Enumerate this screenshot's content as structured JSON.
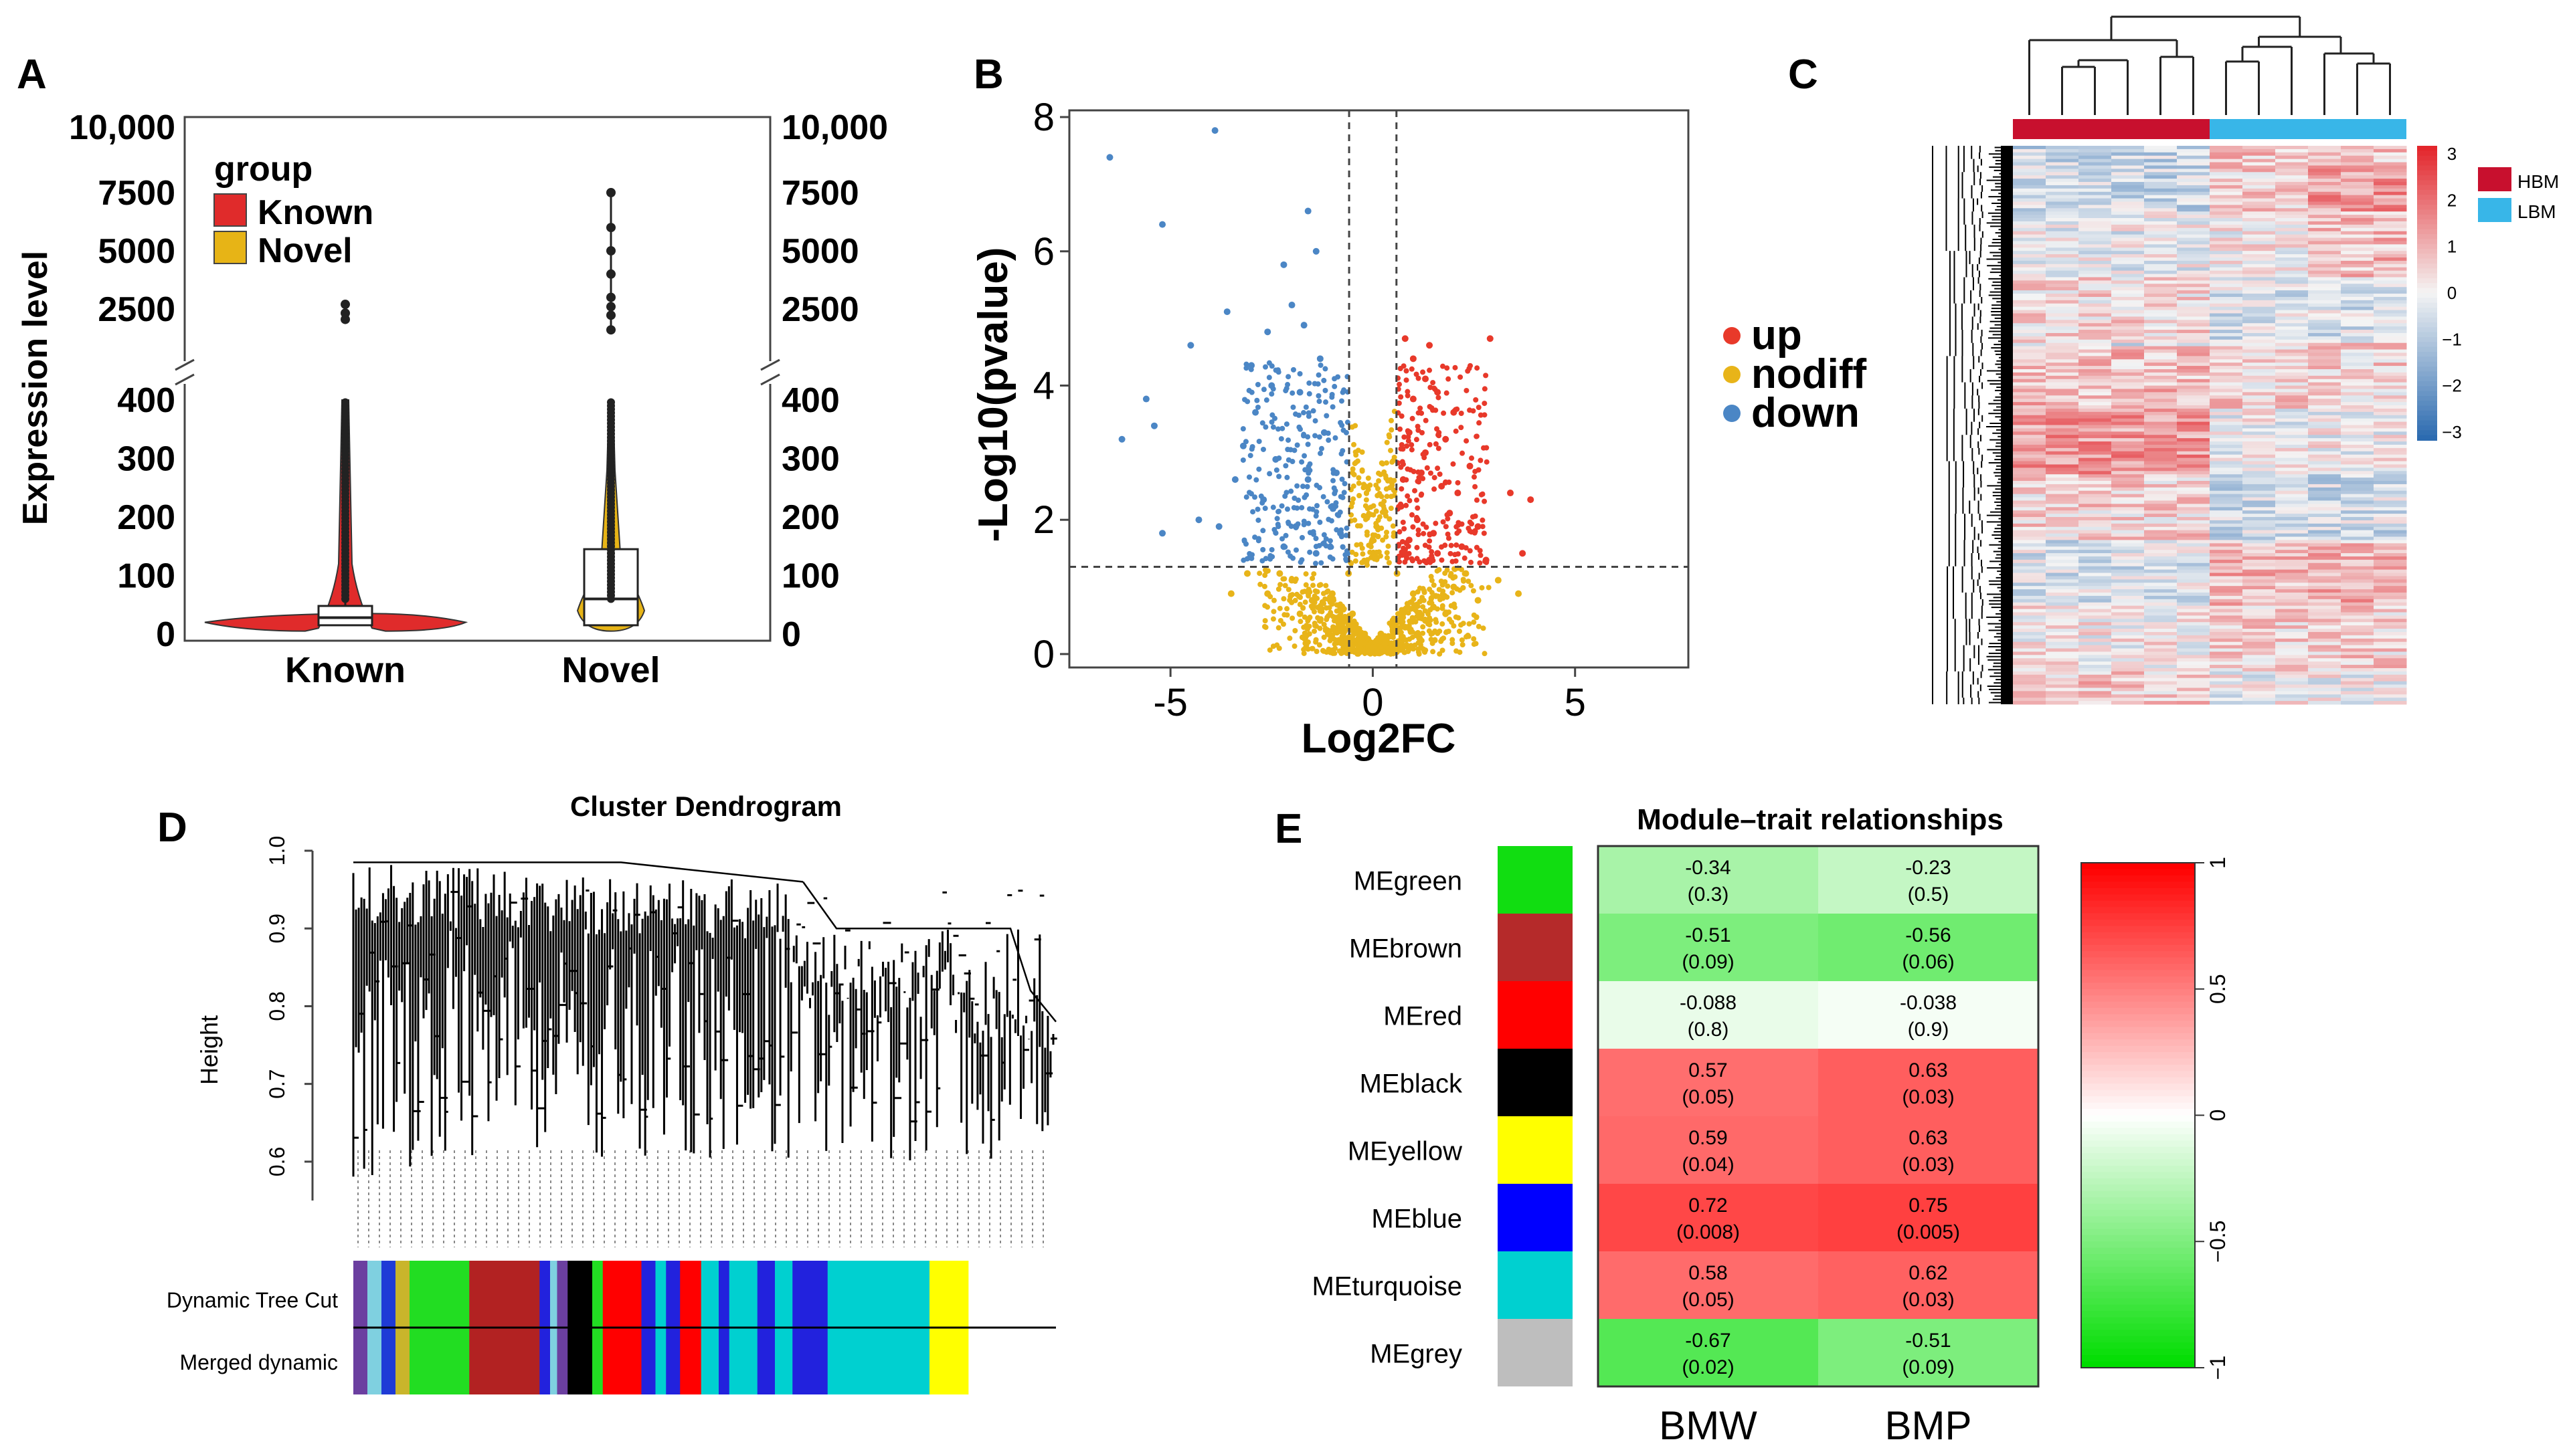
{
  "panels": {
    "A": {
      "letter": "A"
    },
    "B": {
      "letter": "B"
    },
    "C": {
      "letter": "C"
    },
    "D": {
      "letter": "D"
    },
    "E": {
      "letter": "E"
    }
  },
  "chart_data": [
    {
      "panel": "A",
      "type": "violin",
      "ylabel": "Expression level",
      "categories": [
        "Known",
        "Novel"
      ],
      "colors": {
        "Known": "#e02b2b",
        "Novel": "#e7b416"
      },
      "legend": {
        "title": "group",
        "items": [
          "Known",
          "Novel"
        ],
        "placement": "top-left"
      },
      "y_ticks_lower": [
        "0",
        "100",
        "200",
        "300",
        "400"
      ],
      "y_ticks_upper": [
        "2500",
        "5000",
        "7500",
        "10,000"
      ],
      "axis_break": true,
      "boxes": [
        {
          "name": "Known",
          "q1": 15,
          "median": 28,
          "q3": 48,
          "whisker_high": 400,
          "outliers_upper": [
            2000,
            2300,
            2700
          ]
        },
        {
          "name": "Novel",
          "q1": 15,
          "median": 60,
          "q3": 145,
          "whisker_high": 400,
          "outliers_upper": [
            1500,
            2200,
            2600,
            3000,
            4000,
            5000,
            6000,
            7500
          ]
        }
      ]
    },
    {
      "panel": "B",
      "type": "scatter",
      "title": "",
      "xlabel": "Log2FC",
      "ylabel": "-Log10(pvalue)",
      "xlim": [
        -7.5,
        7.8
      ],
      "ylim": [
        -0.2,
        8.1
      ],
      "x_ticks": [
        "-5",
        "0",
        "5"
      ],
      "y_ticks": [
        "0",
        "2",
        "4",
        "6",
        "8"
      ],
      "thresholds": {
        "log2fc": [
          -0.585,
          0.585
        ],
        "neg_log10_p": 1.3
      },
      "legend": {
        "items": [
          "up",
          "nodiff",
          "down"
        ],
        "placement": "right"
      },
      "colors": {
        "up": "#e8392a",
        "nodiff": "#e8b419",
        "down": "#4b86c5"
      },
      "series": [
        {
          "name": "up",
          "points": [
            [
              0.8,
              4.7
            ],
            [
              1.0,
              4.4
            ],
            [
              1.4,
              4.6
            ],
            [
              2.9,
              4.7
            ],
            [
              1.6,
              3.9
            ],
            [
              2.0,
              3.6
            ],
            [
              0.9,
              3.3
            ],
            [
              1.3,
              3.0
            ],
            [
              2.4,
              2.8
            ],
            [
              1.7,
              2.5
            ],
            [
              0.7,
              2.2
            ],
            [
              1.1,
              2.0
            ],
            [
              3.4,
              2.4
            ],
            [
              3.9,
              2.3
            ],
            [
              1.5,
              1.8
            ],
            [
              2.2,
              1.6
            ],
            [
              0.8,
              1.5
            ],
            [
              3.7,
              1.5
            ],
            [
              1.2,
              2.7
            ],
            [
              1.9,
              2.1
            ],
            [
              0.9,
              1.7
            ],
            [
              2.6,
              1.9
            ],
            [
              1.4,
              1.4
            ],
            [
              1.0,
              3.8
            ],
            [
              1.8,
              3.2
            ],
            [
              2.1,
              2.4
            ],
            [
              0.75,
              2.6
            ],
            [
              1.6,
              1.5
            ],
            [
              2.8,
              1.4
            ],
            [
              1.3,
              4.1
            ]
          ]
        },
        {
          "name": "down",
          "points": [
            [
              -6.5,
              7.4
            ],
            [
              -3.9,
              7.8
            ],
            [
              -5.2,
              6.4
            ],
            [
              -1.6,
              6.6
            ],
            [
              -2.2,
              5.8
            ],
            [
              -1.4,
              6.0
            ],
            [
              -3.6,
              5.1
            ],
            [
              -2.6,
              4.8
            ],
            [
              -2.0,
              5.2
            ],
            [
              -4.5,
              4.6
            ],
            [
              -1.3,
              4.4
            ],
            [
              -5.6,
              3.8
            ],
            [
              -6.2,
              3.2
            ],
            [
              -5.4,
              3.4
            ],
            [
              -2.9,
              3.6
            ],
            [
              -1.8,
              3.9
            ],
            [
              -3.2,
              3.1
            ],
            [
              -2.4,
              2.9
            ],
            [
              -1.2,
              3.3
            ],
            [
              -1.6,
              2.6
            ],
            [
              -5.2,
              1.8
            ],
            [
              -4.3,
              2.0
            ],
            [
              -3.8,
              1.9
            ],
            [
              -2.7,
              2.3
            ],
            [
              -1.9,
              1.9
            ],
            [
              -1.0,
              2.2
            ],
            [
              -2.2,
              1.6
            ],
            [
              -1.4,
              1.5
            ],
            [
              -3.4,
              2.6
            ],
            [
              -0.8,
              1.8
            ],
            [
              -2.5,
              4.0
            ],
            [
              -1.7,
              4.9
            ],
            [
              -3.0,
              4.3
            ],
            [
              -0.9,
              2.7
            ]
          ]
        },
        {
          "name": "nodiff",
          "points": [
            [
              -2.0,
              1.1
            ],
            [
              -1.5,
              0.8
            ],
            [
              -1.0,
              0.9
            ],
            [
              -0.5,
              0.6
            ],
            [
              -0.2,
              0.3
            ],
            [
              0.0,
              0.1
            ],
            [
              0.2,
              0.3
            ],
            [
              0.5,
              0.5
            ],
            [
              1.0,
              0.9
            ],
            [
              1.5,
              0.7
            ],
            [
              2.0,
              1.0
            ],
            [
              2.6,
              0.8
            ],
            [
              -2.6,
              0.9
            ],
            [
              -3.1,
              1.2
            ],
            [
              3.1,
              1.1
            ],
            [
              -0.8,
              0.4
            ],
            [
              0.8,
              0.4
            ],
            [
              -1.3,
              0.5
            ],
            [
              1.3,
              0.5
            ],
            [
              -0.3,
              0.15
            ],
            [
              0.3,
              0.15
            ],
            [
              -1.8,
              0.6
            ],
            [
              1.8,
              0.6
            ],
            [
              2.3,
              1.2
            ],
            [
              -2.3,
              1.2
            ],
            [
              3.6,
              0.9
            ],
            [
              -3.5,
              0.9
            ],
            [
              0.6,
              1.2
            ],
            [
              -0.6,
              1.2
            ],
            [
              1.1,
              0.3
            ],
            [
              -1.1,
              0.3
            ]
          ]
        }
      ]
    },
    {
      "panel": "C",
      "type": "heatmap",
      "groups": [
        "HBM",
        "LBM"
      ],
      "group_colors": {
        "HBM": "#c8102e",
        "LBM": "#38b6e8"
      },
      "samples_per_group": 6,
      "color_scale": {
        "min": -3,
        "max": 3,
        "low": "#2c6bb0",
        "mid": "#f4f4f4",
        "high": "#e3262c"
      },
      "scale_ticks": [
        "3",
        "2",
        "1",
        "0",
        "−1",
        "−2",
        "−3"
      ]
    },
    {
      "panel": "D",
      "type": "dendrogram",
      "title": "Cluster Dendrogram",
      "ylabel": "Height",
      "ylim": [
        0.5,
        1.0
      ],
      "y_ticks": [
        "0.6",
        "0.7",
        "0.8",
        "0.9",
        "1.0"
      ],
      "row_labels": [
        "Dynamic Tree Cut",
        "Merged dynamic"
      ],
      "color_bands": [
        {
          "color": "#6b3fa0",
          "width": 0.02
        },
        {
          "color": "#7fd0e0",
          "width": 0.02
        },
        {
          "color": "#1f3bd6",
          "width": 0.02
        },
        {
          "color": "#c9b52b",
          "width": 0.02
        },
        {
          "color": "#22dd22",
          "width": 0.085
        },
        {
          "color": "#b22222",
          "width": 0.1
        },
        {
          "color": "#2222dd",
          "width": 0.015
        },
        {
          "color": "#7fd0e0",
          "width": 0.01
        },
        {
          "color": "#6b3fa0",
          "width": 0.015
        },
        {
          "color": "#000000",
          "width": 0.035
        },
        {
          "color": "#22dd22",
          "width": 0.015
        },
        {
          "color": "#ff0000",
          "width": 0.055
        },
        {
          "color": "#2222dd",
          "width": 0.02
        },
        {
          "color": "#00d0d0",
          "width": 0.015
        },
        {
          "color": "#2222dd",
          "width": 0.02
        },
        {
          "color": "#ff0000",
          "width": 0.03
        },
        {
          "color": "#00d0d0",
          "width": 0.025
        },
        {
          "color": "#2222dd",
          "width": 0.015
        },
        {
          "color": "#00d0d0",
          "width": 0.04
        },
        {
          "color": "#2222dd",
          "width": 0.025
        },
        {
          "color": "#00d0d0",
          "width": 0.025
        },
        {
          "color": "#2222dd",
          "width": 0.05
        },
        {
          "color": "#00d0d0",
          "width": 0.145
        },
        {
          "color": "#ffff00",
          "width": 0.055
        }
      ]
    },
    {
      "panel": "E",
      "type": "heatmap",
      "title": "Module–trait relationships",
      "columns": [
        "BMW",
        "BMP"
      ],
      "rows": [
        "MEgreen",
        "MEbrown",
        "MEred",
        "MEblack",
        "MEyellow",
        "MEblue",
        "MEturquoise",
        "MEgrey"
      ],
      "row_colors": [
        "#11dd11",
        "#b52a2a",
        "#ff0000",
        "#000000",
        "#ffff00",
        "#0000ff",
        "#00d0d0",
        "#bebebe"
      ],
      "values": [
        [
          -0.34,
          -0.23
        ],
        [
          -0.51,
          -0.56
        ],
        [
          -0.088,
          -0.038
        ],
        [
          0.57,
          0.63
        ],
        [
          0.59,
          0.63
        ],
        [
          0.72,
          0.75
        ],
        [
          0.58,
          0.62
        ],
        [
          -0.67,
          -0.51
        ]
      ],
      "value_labels": [
        [
          "-0.34",
          "-0.23"
        ],
        [
          "-0.51",
          "-0.56"
        ],
        [
          "-0.088",
          "-0.038"
        ],
        [
          "0.57",
          "0.63"
        ],
        [
          "0.59",
          "0.63"
        ],
        [
          "0.72",
          "0.75"
        ],
        [
          "0.58",
          "0.62"
        ],
        [
          "-0.67",
          "-0.51"
        ]
      ],
      "pvalue_labels": [
        [
          "(0.3)",
          "(0.5)"
        ],
        [
          "(0.09)",
          "(0.06)"
        ],
        [
          "(0.8)",
          "(0.9)"
        ],
        [
          "(0.05)",
          "(0.03)"
        ],
        [
          "(0.04)",
          "(0.03)"
        ],
        [
          "(0.008)",
          "(0.005)"
        ],
        [
          "(0.05)",
          "(0.03)"
        ],
        [
          "(0.02)",
          "(0.09)"
        ]
      ],
      "color_scale": {
        "min": -1,
        "max": 1,
        "low": "#00dd00",
        "mid": "#ffffff",
        "high": "#ff0000"
      },
      "scale_ticks": [
        "1",
        "0.5",
        "0",
        "−0.5",
        "−1"
      ]
    }
  ]
}
